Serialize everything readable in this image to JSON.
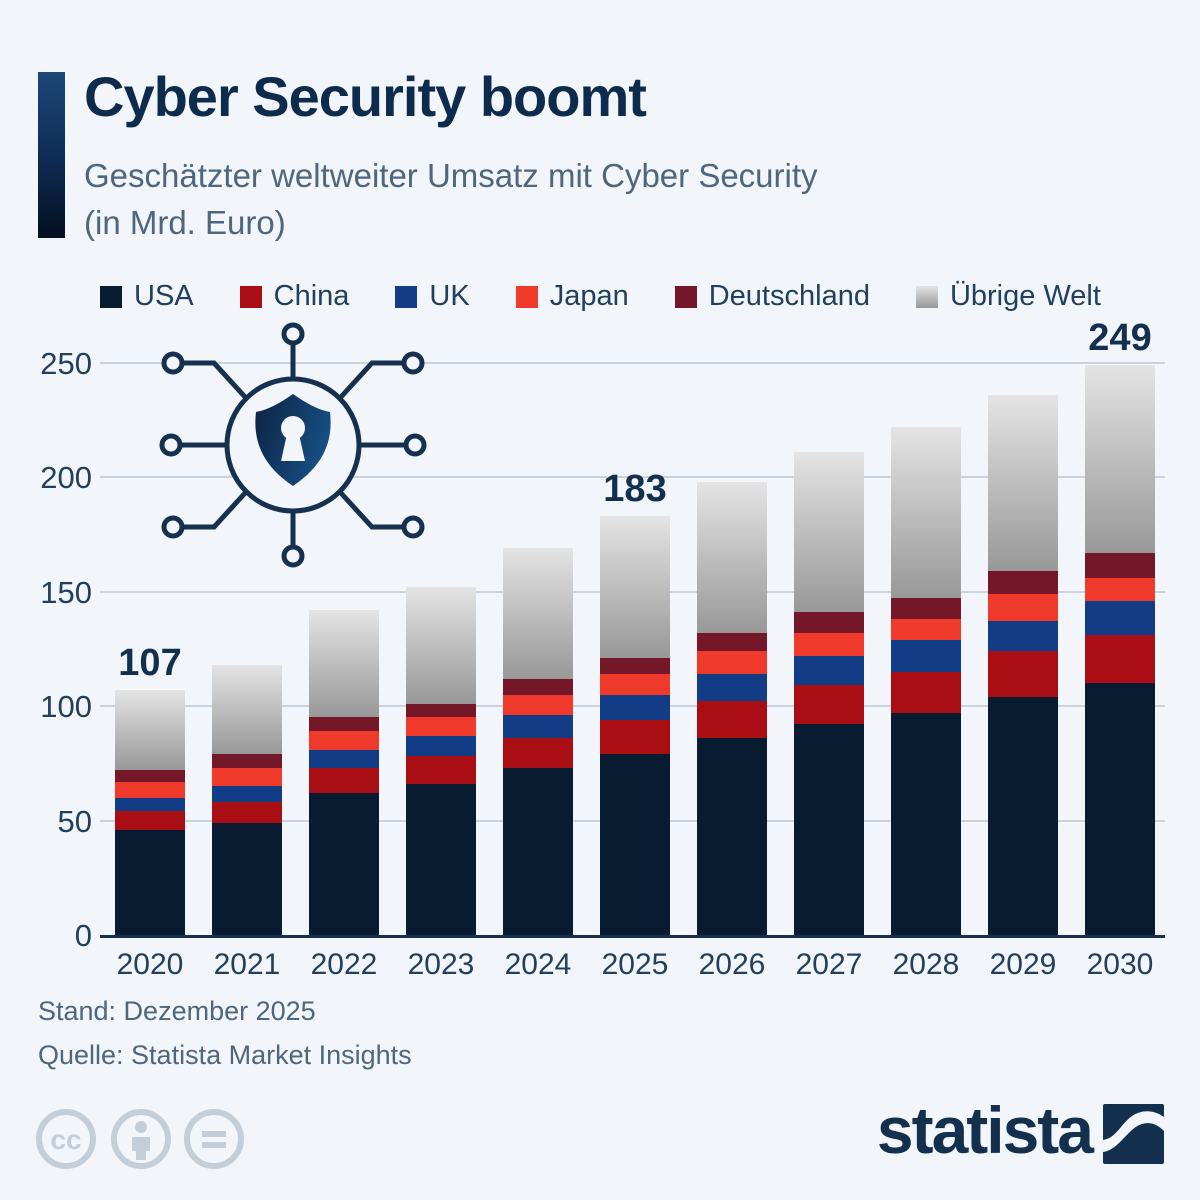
{
  "header": {
    "title": "Cyber Security boomt",
    "subtitle_line1": "Geschätzter weltweiter Umsatz mit Cyber Security",
    "subtitle_line2": "(in Mrd. Euro)"
  },
  "chart_data": {
    "type": "bar",
    "stacked": true,
    "title": "Cyber Security boomt",
    "subtitle": "Geschätzter weltweiter Umsatz mit Cyber Security (in Mrd. Euro)",
    "categories": [
      "2020",
      "2021",
      "2022",
      "2023",
      "2024",
      "2025",
      "2026",
      "2027",
      "2028",
      "2029",
      "2030"
    ],
    "series": [
      {
        "name": "USA",
        "color": "#081b31",
        "values": [
          46,
          49,
          62,
          66,
          73,
          79,
          86,
          92,
          97,
          104,
          110
        ]
      },
      {
        "name": "China",
        "color": "#a90e15",
        "values": [
          8,
          9,
          11,
          12,
          13,
          15,
          16,
          17,
          18,
          20,
          21
        ]
      },
      {
        "name": "UK",
        "color": "#123c85",
        "values": [
          6,
          7,
          8,
          9,
          10,
          11,
          12,
          13,
          14,
          13,
          15
        ]
      },
      {
        "name": "Japan",
        "color": "#ee392b",
        "values": [
          7,
          8,
          8,
          8,
          9,
          9,
          10,
          10,
          9,
          12,
          10
        ]
      },
      {
        "name": "Deutschland",
        "color": "#731729",
        "values": [
          5,
          6,
          6,
          6,
          7,
          7,
          8,
          9,
          9,
          10,
          11
        ]
      },
      {
        "name": "Übrige Welt",
        "color": "#bdbdbd",
        "gradient_top": "#e4e4e4",
        "gradient_bottom": "#999899",
        "values": [
          35,
          39,
          47,
          51,
          57,
          62,
          66,
          70,
          75,
          77,
          82
        ]
      }
    ],
    "total_labels": [
      107,
      null,
      null,
      null,
      null,
      183,
      null,
      null,
      null,
      null,
      249
    ],
    "ylabel": "",
    "xlabel": "",
    "ylim": [
      0,
      250
    ],
    "yticks": [
      0,
      50,
      100,
      150,
      200,
      250
    ],
    "grid": true,
    "legend_position": "top"
  },
  "footer": {
    "stand": "Stand: Dezember 2025",
    "source": "Quelle: Statista Market Insights",
    "brand": "statista"
  },
  "icons": {
    "shield_network": "shield-network-icon",
    "cc": "cc-license-icon",
    "cc_by": "cc-attribution-icon",
    "cc_nd": "cc-no-derivatives-icon",
    "brand_logo": "statista-logo"
  },
  "colors": {
    "background": "#f2f5f9",
    "title": "#0d2b4d",
    "subtitle": "#4e667e",
    "axis_text": "#22405e",
    "gridline": "#c9d3de",
    "axis_line": "#16314f",
    "total_label": "#13304f",
    "accent_gradient_top": "#1c4879",
    "accent_gradient_bottom": "#050f20",
    "cc_icon": "#c4ced9"
  }
}
